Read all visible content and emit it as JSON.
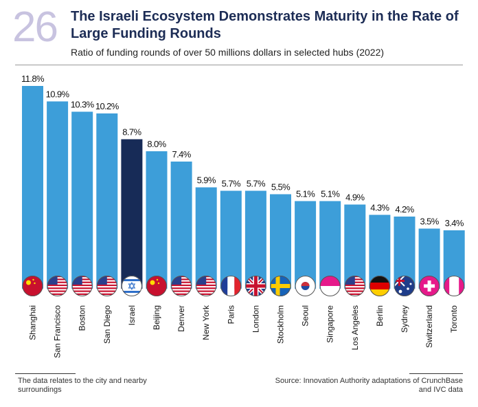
{
  "chart_data": {
    "type": "bar",
    "number": "26",
    "title": [
      "The Israeli Ecosystem Demonstrates Maturity in the Rate of",
      "Large Funding Rounds"
    ],
    "subtitle": "Ratio of funding rounds of over 50 millions dollars in selected hubs (2022)",
    "categories": [
      "Shanghai",
      "San Francisco",
      "Boston",
      "San Diego",
      "Israel",
      "Beijing",
      "Denver",
      "New York",
      "Paris",
      "London",
      "Stockholm",
      "Seoul",
      "Singapore",
      "Los Angeles",
      "Berlin",
      "Sydney",
      "Switzerland",
      "Toronto"
    ],
    "values": [
      11.8,
      10.9,
      10.3,
      10.2,
      8.7,
      8.0,
      7.4,
      5.9,
      5.7,
      5.7,
      5.5,
      5.1,
      5.1,
      4.9,
      4.3,
      4.2,
      3.5,
      3.4
    ],
    "value_labels": [
      "11.8%",
      "10.9%",
      "10.3%",
      "10.2%",
      "8.7%",
      "8.0%",
      "7.4%",
      "5.9%",
      "5.7%",
      "5.7%",
      "5.5%",
      "5.1%",
      "5.1%",
      "4.9%",
      "4.3%",
      "4.2%",
      "3.5%",
      "3.4%"
    ],
    "colors": [
      "#3d9ed9",
      "#3d9ed9",
      "#3d9ed9",
      "#3d9ed9",
      "#172b57",
      "#3d9ed9",
      "#3d9ed9",
      "#3d9ed9",
      "#3d9ed9",
      "#3d9ed9",
      "#3d9ed9",
      "#3d9ed9",
      "#3d9ed9",
      "#3d9ed9",
      "#3d9ed9",
      "#3d9ed9",
      "#3d9ed9",
      "#3d9ed9"
    ],
    "note": [
      "The data relates to the city and nearby",
      "surroundings"
    ],
    "source": [
      "Source: Innovation Authority adaptations of CrunchBase",
      "and IVC data"
    ]
  }
}
